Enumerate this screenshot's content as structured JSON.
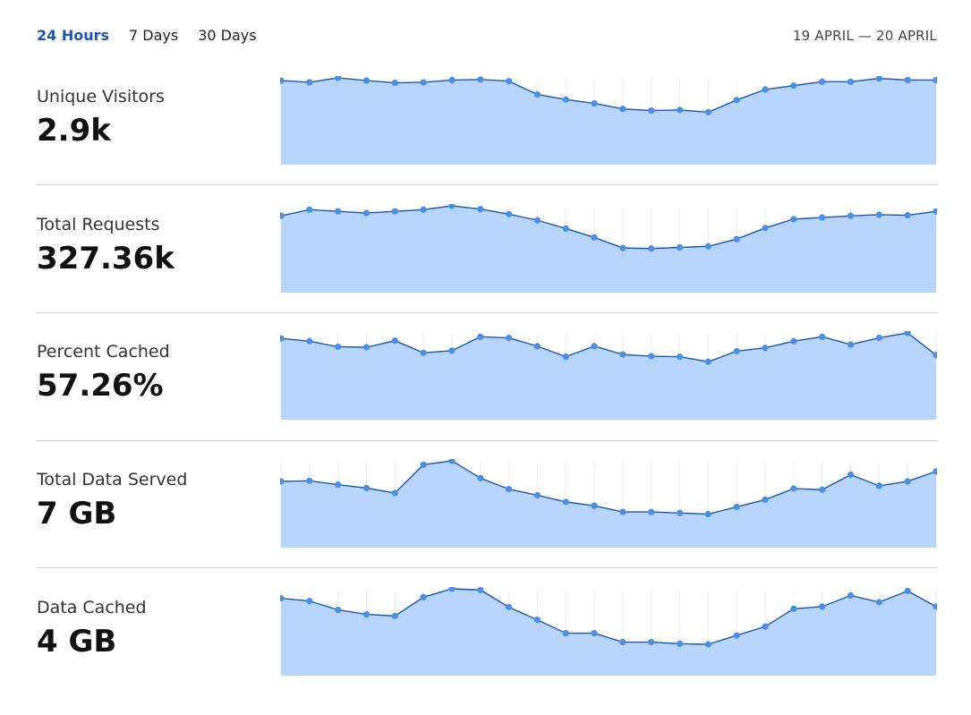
{
  "filters": {
    "tabs": [
      {
        "label": "24 Hours",
        "active": true
      },
      {
        "label": "7 Days",
        "active": false
      },
      {
        "label": "30 Days",
        "active": false
      }
    ],
    "date_range": "19 APRIL — 20 APRIL"
  },
  "colors": {
    "accent": "#1a56b8",
    "line": "#1a56b8",
    "point": "#4a8ee6",
    "area": "#b8d5fb",
    "gridline": "#ececec"
  },
  "metrics": [
    {
      "label": "Unique Visitors",
      "value": "2.9k"
    },
    {
      "label": "Total Requests",
      "value": "327.36k"
    },
    {
      "label": "Percent Cached",
      "value": "57.26%"
    },
    {
      "label": "Total Data Served",
      "value": "7 GB"
    },
    {
      "label": "Data Cached",
      "value": "4 GB"
    }
  ],
  "chart_data": [
    {
      "type": "area",
      "title": "",
      "ylim": [
        0,
        100
      ],
      "series": [
        {
          "values": [
            95,
            92,
            100,
            95,
            91,
            92,
            96,
            97,
            94,
            70,
            61,
            54,
            44,
            41,
            42,
            38,
            60,
            79,
            86,
            93,
            93,
            99,
            96,
            96
          ]
        }
      ]
    },
    {
      "type": "area",
      "title": "",
      "ylim": [
        0,
        100
      ],
      "series": [
        {
          "values": [
            82,
            93,
            90,
            87,
            90,
            93,
            100,
            94,
            85,
            74,
            59,
            43,
            24,
            23,
            25,
            27,
            40,
            60,
            76,
            79,
            82,
            84,
            83,
            90
          ]
        }
      ]
    },
    {
      "type": "area",
      "title": "",
      "ylim": [
        0,
        100
      ],
      "series": [
        {
          "values": [
            90,
            85,
            75,
            74,
            86,
            64,
            68,
            93,
            91,
            76,
            57,
            76,
            61,
            58,
            57,
            48,
            67,
            73,
            85,
            93,
            79,
            91,
            100,
            60
          ]
        }
      ]
    },
    {
      "type": "area",
      "title": "",
      "ylim": [
        0,
        100
      ],
      "series": [
        {
          "values": [
            63,
            64,
            57,
            51,
            42,
            93,
            100,
            69,
            49,
            38,
            26,
            19,
            8,
            8,
            6,
            4,
            17,
            30,
            50,
            48,
            75,
            55,
            63,
            81
          ]
        }
      ]
    },
    {
      "type": "area",
      "title": "",
      "ylim": [
        0,
        100
      ],
      "series": [
        {
          "values": [
            83,
            78,
            62,
            54,
            51,
            85,
            100,
            98,
            67,
            44,
            20,
            20,
            4,
            4,
            1,
            0,
            16,
            32,
            64,
            68,
            88,
            76,
            96,
            68
          ]
        }
      ]
    }
  ]
}
